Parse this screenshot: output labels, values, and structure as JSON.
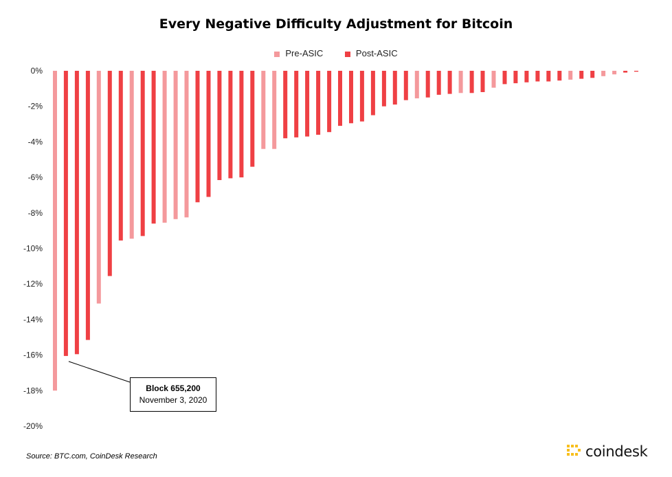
{
  "chart_data": {
    "type": "bar",
    "title": "Every Negative Difficulty Adjustment for Bitcoin",
    "xlabel": "",
    "ylabel": "",
    "ylim": [
      -20,
      0
    ],
    "y_ticks": [
      "0%",
      "-2%",
      "-4%",
      "-6%",
      "-8%",
      "-10%",
      "-12%",
      "-14%",
      "-16%",
      "-18%",
      "-20%"
    ],
    "grid": false,
    "legend_position": "top-center",
    "series": [
      {
        "name": "Pre-ASIC",
        "color": "#f4999c"
      },
      {
        "name": "Post-ASIC",
        "color": "#ef4044"
      }
    ],
    "values": [
      -18.0,
      -16.05,
      -15.95,
      -15.15,
      -13.1,
      -11.55,
      -9.55,
      -9.45,
      -9.3,
      -8.6,
      -8.55,
      -8.35,
      -8.25,
      -7.4,
      -7.1,
      -6.15,
      -6.05,
      -6.0,
      -5.4,
      -4.4,
      -4.4,
      -3.8,
      -3.75,
      -3.7,
      -3.6,
      -3.45,
      -3.1,
      -2.95,
      -2.85,
      -2.5,
      -2.0,
      -1.9,
      -1.65,
      -1.55,
      -1.5,
      -1.35,
      -1.3,
      -1.25,
      -1.25,
      -1.2,
      -0.95,
      -0.75,
      -0.7,
      -0.65,
      -0.6,
      -0.6,
      -0.55,
      -0.5,
      -0.45,
      -0.4,
      -0.3,
      -0.2,
      -0.1,
      -0.05
    ],
    "era": [
      "Pre-ASIC",
      "Post-ASIC",
      "Post-ASIC",
      "Post-ASIC",
      "Pre-ASIC",
      "Post-ASIC",
      "Post-ASIC",
      "Pre-ASIC",
      "Post-ASIC",
      "Post-ASIC",
      "Pre-ASIC",
      "Pre-ASIC",
      "Pre-ASIC",
      "Post-ASIC",
      "Post-ASIC",
      "Post-ASIC",
      "Post-ASIC",
      "Post-ASIC",
      "Post-ASIC",
      "Pre-ASIC",
      "Pre-ASIC",
      "Post-ASIC",
      "Post-ASIC",
      "Post-ASIC",
      "Post-ASIC",
      "Post-ASIC",
      "Post-ASIC",
      "Post-ASIC",
      "Post-ASIC",
      "Post-ASIC",
      "Post-ASIC",
      "Post-ASIC",
      "Post-ASIC",
      "Pre-ASIC",
      "Post-ASIC",
      "Post-ASIC",
      "Post-ASIC",
      "Pre-ASIC",
      "Post-ASIC",
      "Post-ASIC",
      "Pre-ASIC",
      "Post-ASIC",
      "Post-ASIC",
      "Post-ASIC",
      "Post-ASIC",
      "Post-ASIC",
      "Post-ASIC",
      "Pre-ASIC",
      "Post-ASIC",
      "Post-ASIC",
      "Pre-ASIC",
      "Pre-ASIC",
      "Post-ASIC",
      "Post-ASIC"
    ],
    "annotation": {
      "bar_index": 1,
      "title": "Block 655,200",
      "subtitle": "November 3, 2020"
    }
  },
  "source": "Source: BTC.com, CoinDesk Research",
  "brand": {
    "name": "coindesk",
    "color": "#f8bf1c"
  }
}
